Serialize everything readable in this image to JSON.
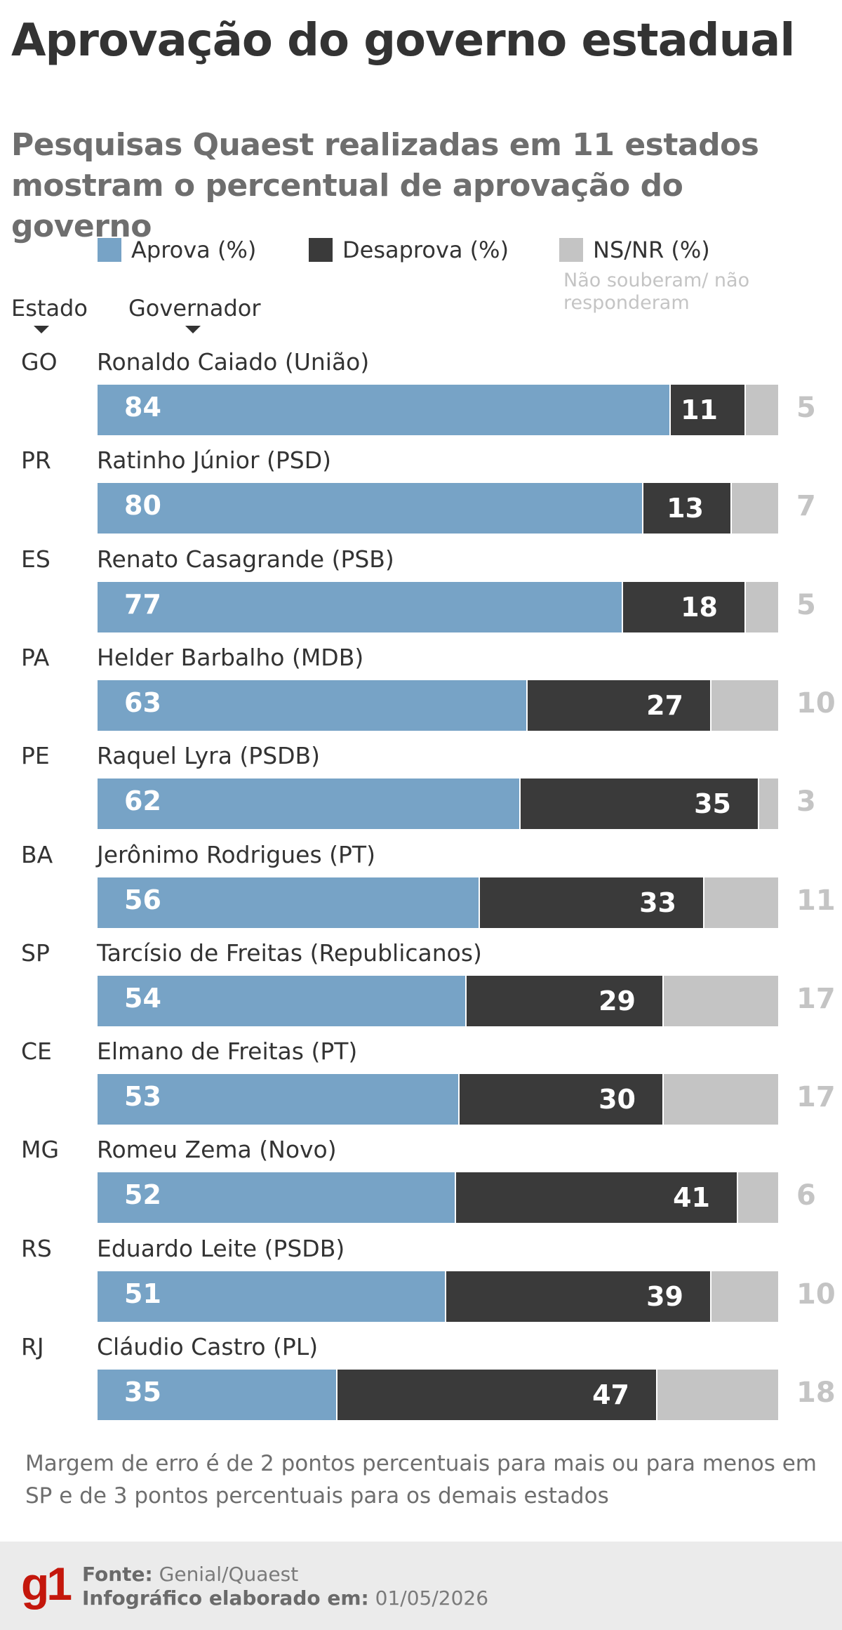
{
  "header": {
    "title": "Aprovação do governo estadual",
    "subtitle": "Pesquisas Quaest realizadas em 11 estados mostram o percentual de aprovação do governo"
  },
  "legend": {
    "approve": "Aprova (%)",
    "disapprove": "Desaprova (%)",
    "nsnr": "NS/NR (%)",
    "nsnr_note": "Não souberam/ não responderam"
  },
  "columns": {
    "state": "Estado",
    "governor": "Governador"
  },
  "colors": {
    "approve": "#77a3c6",
    "disapprove": "#3a3a3a",
    "nsnr": "#c4c4c4",
    "brand": "#c4170c"
  },
  "chart_data": {
    "type": "bar",
    "orientation": "horizontal",
    "stacked": true,
    "categories": [
      "GO",
      "PR",
      "ES",
      "PA",
      "PE",
      "BA",
      "SP",
      "CE",
      "MG",
      "RS",
      "RJ"
    ],
    "governors": [
      "Ronaldo Caiado (União)",
      "Ratinho Júnior (PSD)",
      "Renato Casagrande (PSB)",
      "Helder Barbalho (MDB)",
      "Raquel Lyra (PSDB)",
      "Jerônimo Rodrigues (PT)",
      "Tarcísio de Freitas (Republicanos)",
      "Elmano de Freitas (PT)",
      "Romeu Zema (Novo)",
      "Eduardo Leite (PSDB)",
      "Cláudio Castro (PL)"
    ],
    "series": [
      {
        "name": "Aprova (%)",
        "values": [
          84,
          80,
          77,
          63,
          62,
          56,
          54,
          53,
          52,
          51,
          35
        ]
      },
      {
        "name": "Desaprova (%)",
        "values": [
          11,
          13,
          18,
          27,
          35,
          33,
          29,
          30,
          41,
          39,
          47
        ]
      },
      {
        "name": "NS/NR (%)",
        "values": [
          5,
          7,
          5,
          10,
          3,
          11,
          17,
          17,
          6,
          10,
          18
        ]
      }
    ],
    "xlim": [
      0,
      100
    ],
    "legend_position": "top"
  },
  "footnote": "Margem de erro é de 2 pontos percentuais para mais ou para menos em SP e de 3 pontos percentuais para os demais estados",
  "footer": {
    "logo": "g1",
    "source_label": "Fonte:",
    "source_value": "Genial/Quaest",
    "date_label": "Infográfico elaborado em:",
    "date_value": "01/05/2026"
  }
}
